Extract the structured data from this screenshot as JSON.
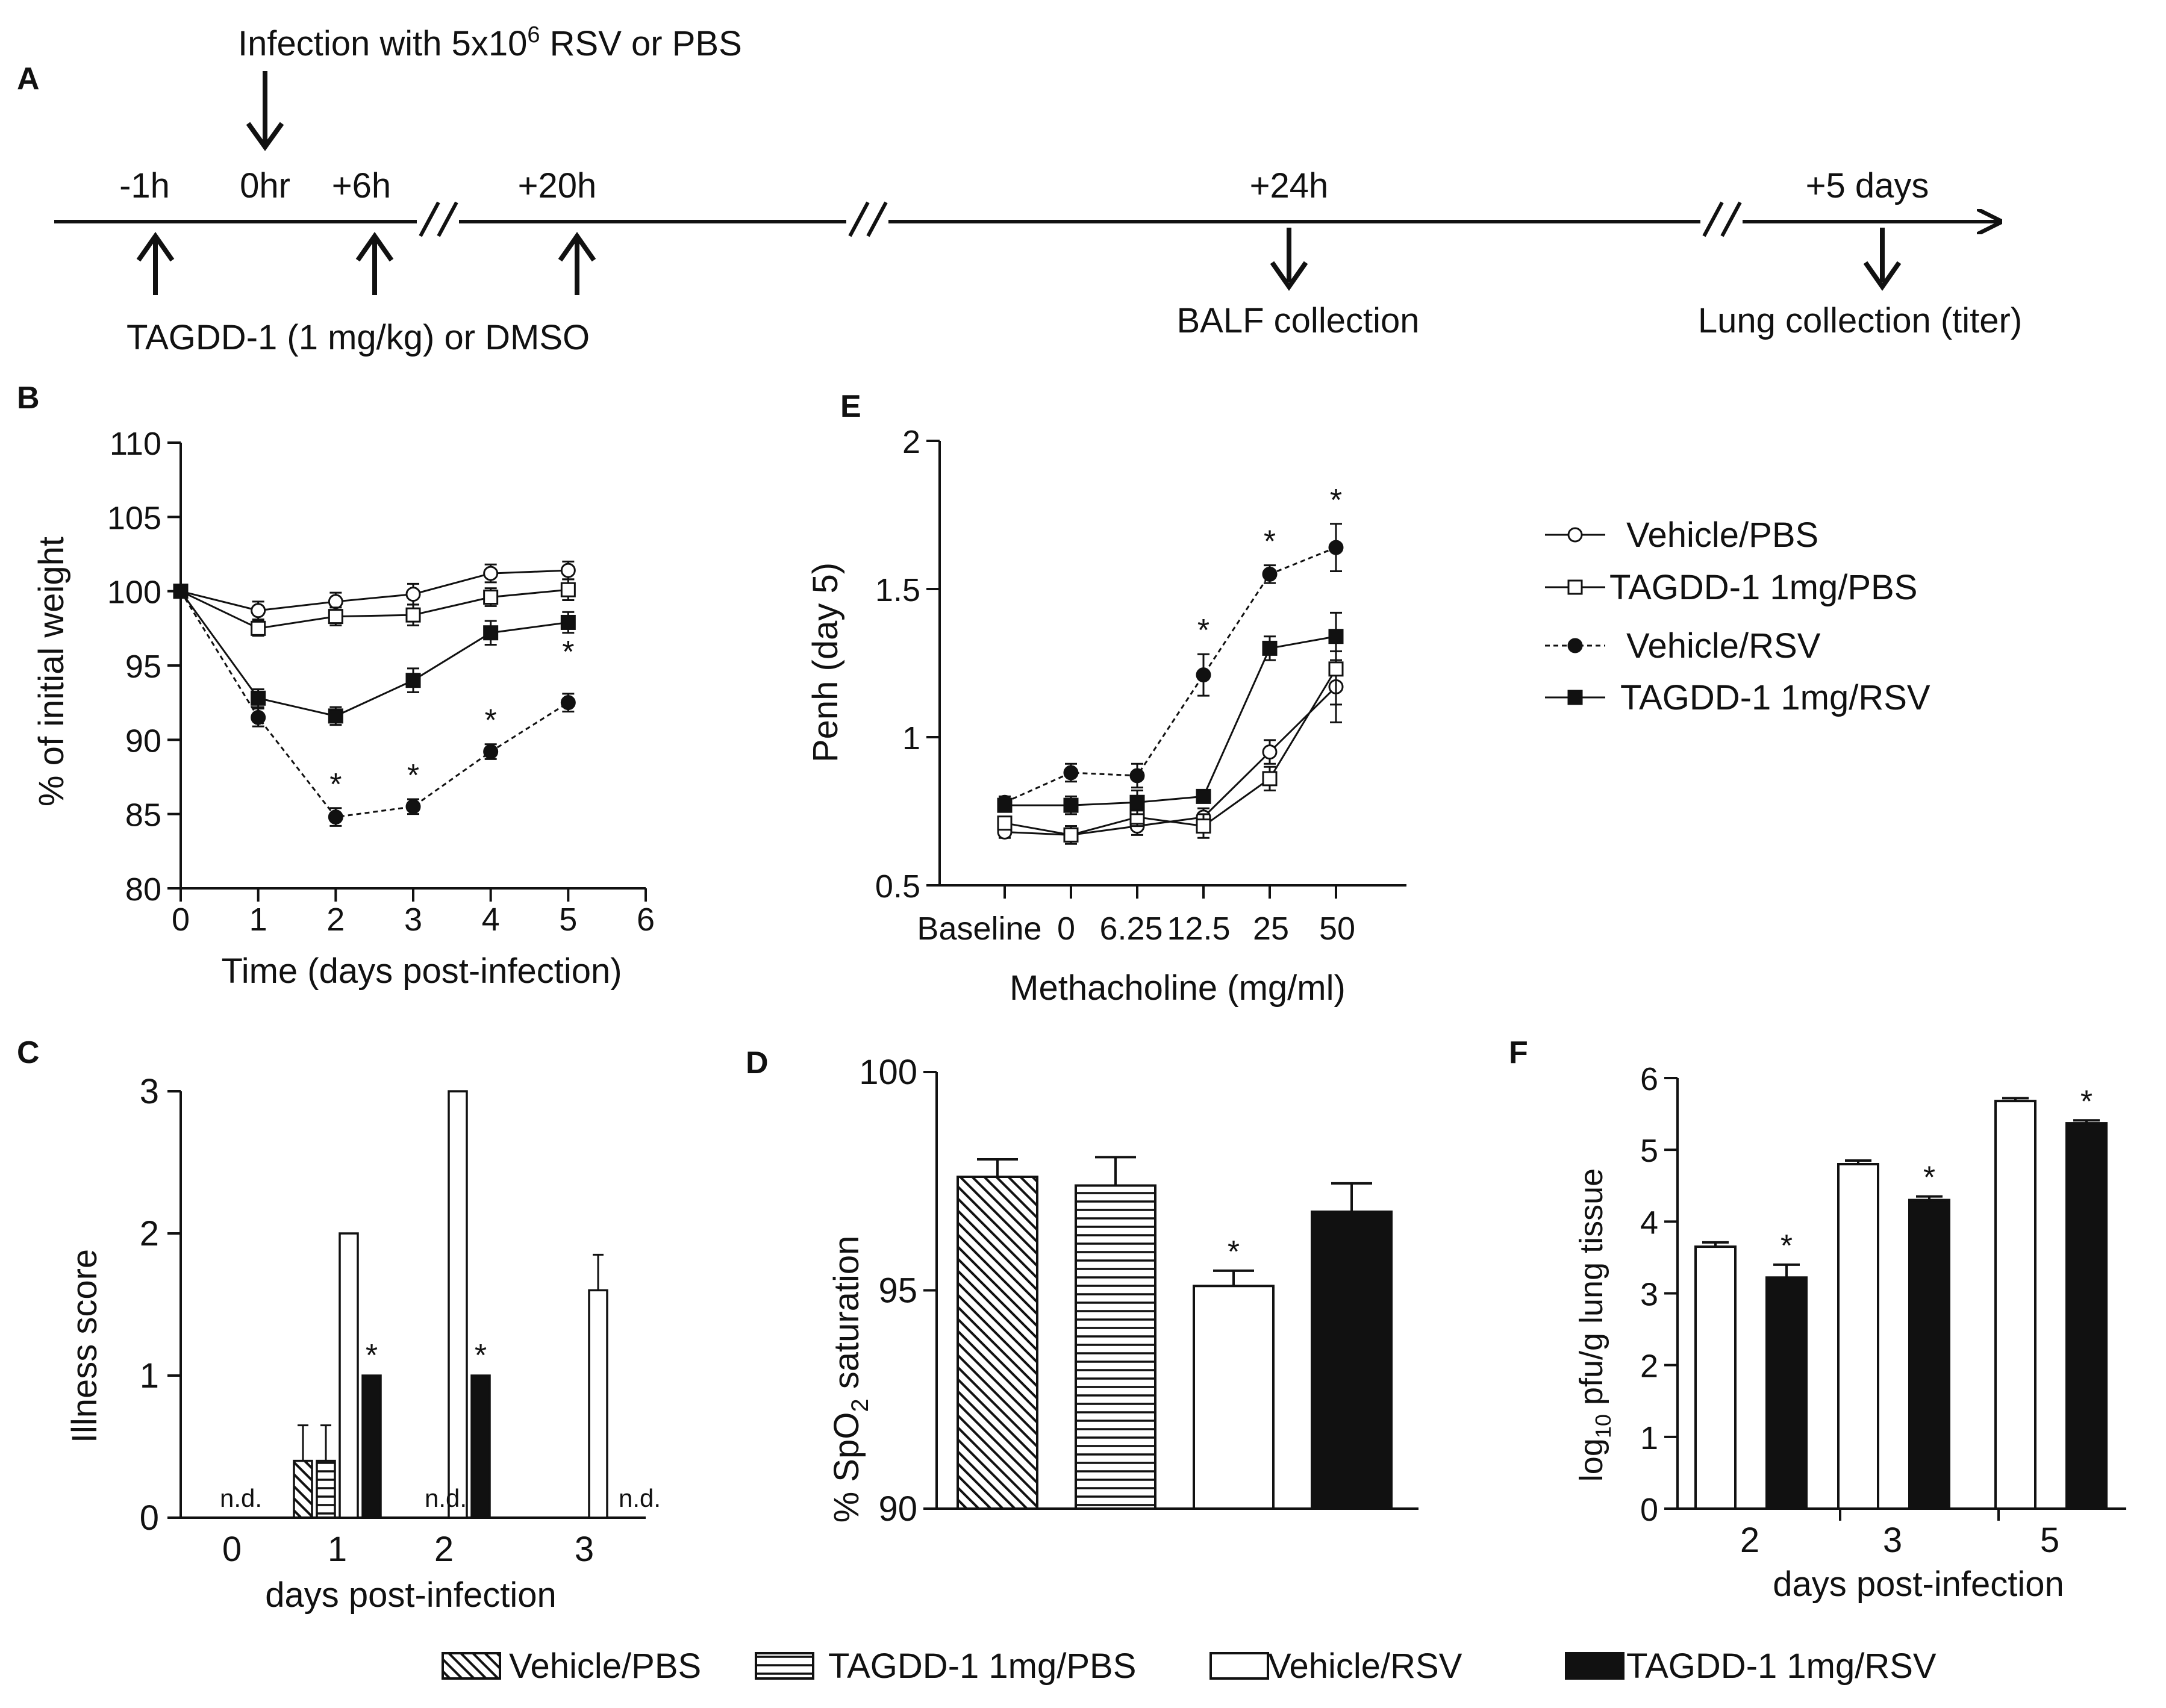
{
  "panel_labels": {
    "A": "A",
    "B": "B",
    "C": "C",
    "D": "D",
    "E": "E",
    "F": "F"
  },
  "timeline": {
    "top_label_prefix": "Infection with 5x10",
    "top_label_exp": "6",
    "top_label_suffix": " RSV or PBS",
    "times": [
      "-1h",
      "0hr",
      "+6h",
      "+20h",
      "+24h",
      "+5 days"
    ],
    "treatment_label": "TAGDD-1 (1 mg/kg) or DMSO",
    "balf_label": "BALF collection",
    "lung_label": "Lung collection (titer)"
  },
  "line_legend": [
    "Vehicle/PBS",
    "TAGDD-1 1mg/PBS",
    "Vehicle/RSV",
    "TAGDD-1 1mg/RSV"
  ],
  "bar_legend": [
    "Vehicle/PBS",
    "TAGDD-1 1mg/PBS",
    "Vehicle/RSV",
    "TAGDD-1 1mg/RSV"
  ],
  "panel_B": {
    "ylabel": "% of initial weight",
    "xlabel": "Time (days post-infection)"
  },
  "panel_C": {
    "ylabel": "Illness score",
    "xlabel": "days post-infection",
    "nd_label": "n.d."
  },
  "panel_D": {
    "ylabel_prefix": "% SpO",
    "ylabel_sub": "2",
    "ylabel_suffix": " saturation"
  },
  "panel_E": {
    "ylabel": "Penh (day 5)",
    "xlabel": "Methacholine (mg/ml)"
  },
  "panel_F": {
    "ylabel_prefix": "log",
    "ylabel_sub": "10",
    "ylabel_suffix": " pfu/g lung tissue",
    "xlabel": "days post-infection"
  },
  "sig_marker": "*",
  "chart_data": [
    {
      "panel": "B",
      "type": "line",
      "xlabel": "Time (days post-infection)",
      "ylabel": "% of initial weight",
      "x": [
        0,
        1,
        2,
        3,
        4,
        5
      ],
      "xlim": [
        0,
        6
      ],
      "ylim": [
        80,
        110
      ],
      "xticks": [
        0,
        1,
        2,
        3,
        4,
        5,
        6
      ],
      "yticks": [
        80,
        85,
        90,
        95,
        100,
        105,
        110
      ],
      "series": [
        {
          "name": "Vehicle/PBS",
          "marker": "circle-open",
          "dashed": false,
          "values": [
            100,
            98.7,
            99.3,
            99.8,
            101.2,
            101.4
          ],
          "errors": [
            0,
            0.6,
            0.6,
            0.7,
            0.6,
            0.6
          ]
        },
        {
          "name": "TAGDD-1 1mg/PBS",
          "marker": "square-open",
          "dashed": false,
          "values": [
            100,
            97.5,
            98.3,
            98.4,
            99.6,
            100.1
          ],
          "errors": [
            0,
            0.5,
            0.6,
            0.7,
            0.6,
            0.7
          ]
        },
        {
          "name": "Vehicle/RSV",
          "marker": "circle-filled",
          "dashed": true,
          "values": [
            100,
            91.5,
            84.8,
            85.5,
            89.2,
            92.5
          ],
          "errors": [
            0,
            0.6,
            0.6,
            0.5,
            0.5,
            0.6
          ]
        },
        {
          "name": "TAGDD-1 1mg/RSV",
          "marker": "square-filled",
          "dashed": false,
          "values": [
            100,
            92.8,
            91.6,
            94.0,
            97.2,
            97.9
          ],
          "errors": [
            0,
            0.6,
            0.6,
            0.8,
            0.8,
            0.7
          ]
        }
      ],
      "significant_x": [
        2,
        3,
        4,
        5
      ]
    },
    {
      "panel": "C",
      "type": "bar",
      "xlabel": "days post-infection",
      "ylabel": "Illness score",
      "categories": [
        "0",
        "1",
        "2",
        "3"
      ],
      "ylim": [
        0,
        3
      ],
      "yticks": [
        0,
        1,
        2,
        3
      ],
      "series": [
        {
          "name": "Vehicle/PBS",
          "values": [
            null,
            0.4,
            null,
            null
          ],
          "errors": [
            null,
            0.25,
            null,
            null
          ]
        },
        {
          "name": "TAGDD-1 1mg/PBS",
          "values": [
            null,
            0.4,
            null,
            null
          ],
          "errors": [
            null,
            0.25,
            null,
            null
          ]
        },
        {
          "name": "Vehicle/RSV",
          "values": [
            null,
            2.0,
            3.0,
            1.6
          ],
          "errors": [
            null,
            0,
            0,
            0.25
          ]
        },
        {
          "name": "TAGDD-1 1mg/RSV",
          "values": [
            null,
            1.0,
            1.0,
            null
          ],
          "errors": [
            null,
            0,
            0,
            null
          ]
        }
      ],
      "not_determined": [
        "0",
        "2",
        "3"
      ],
      "significant": [
        {
          "category": "1",
          "series": "TAGDD-1 1mg/RSV"
        },
        {
          "category": "2",
          "series": "TAGDD-1 1mg/RSV"
        }
      ]
    },
    {
      "panel": "D",
      "type": "bar",
      "ylabel": "% SpO2 saturation",
      "categories": [
        "Vehicle/PBS",
        "TAGDD-1 1mg/PBS",
        "Vehicle/RSV",
        "TAGDD-1 1mg/RSV"
      ],
      "values": [
        97.6,
        97.4,
        95.1,
        96.8
      ],
      "errors": [
        0.4,
        0.65,
        0.35,
        0.65
      ],
      "ylim": [
        90,
        100
      ],
      "yticks": [
        90,
        95,
        100
      ],
      "significant": [
        "Vehicle/RSV"
      ]
    },
    {
      "panel": "E",
      "type": "line",
      "xlabel": "Methacholine (mg/ml)",
      "ylabel": "Penh (day 5)",
      "categories": [
        "Baseline",
        "0",
        "6.25",
        "12.5",
        "25",
        "50"
      ],
      "ylim": [
        0.5,
        2
      ],
      "yticks": [
        0.5,
        1,
        1.5,
        2
      ],
      "series": [
        {
          "name": "Vehicle/PBS",
          "marker": "circle-open",
          "dashed": false,
          "values": [
            0.68,
            0.67,
            0.7,
            0.73,
            0.95,
            1.17
          ],
          "errors": [
            0.02,
            0.03,
            0.03,
            0.03,
            0.04,
            0.12
          ]
        },
        {
          "name": "TAGDD-1 1mg/PBS",
          "marker": "square-open",
          "dashed": false,
          "values": [
            0.71,
            0.67,
            0.73,
            0.7,
            0.86,
            1.23
          ],
          "errors": [
            0.02,
            0.03,
            0.03,
            0.04,
            0.04,
            0.12
          ]
        },
        {
          "name": "Vehicle/RSV",
          "marker": "circle-filled",
          "dashed": true,
          "values": [
            0.78,
            0.88,
            0.87,
            1.21,
            1.55,
            1.64
          ],
          "errors": [
            0.02,
            0.03,
            0.04,
            0.07,
            0.03,
            0.08
          ]
        },
        {
          "name": "TAGDD-1 1mg/RSV",
          "marker": "square-filled",
          "dashed": false,
          "values": [
            0.77,
            0.77,
            0.78,
            0.8,
            1.3,
            1.34
          ],
          "errors": [
            0.02,
            0.03,
            0.04,
            0.02,
            0.04,
            0.08
          ]
        }
      ],
      "significant_categories": [
        "12.5",
        "25",
        "50"
      ]
    },
    {
      "panel": "F",
      "type": "bar",
      "xlabel": "days post-infection",
      "ylabel": "log10 pfu/g lung tissue",
      "categories": [
        "2",
        "3",
        "5"
      ],
      "ylim": [
        0,
        6
      ],
      "yticks": [
        0,
        1,
        2,
        3,
        4,
        5,
        6
      ],
      "series": [
        {
          "name": "Vehicle/RSV",
          "values": [
            3.65,
            4.8,
            5.68
          ],
          "errors": [
            0.06,
            0.05,
            0.04
          ]
        },
        {
          "name": "TAGDD-1 1mg/RSV",
          "values": [
            3.22,
            4.3,
            5.37
          ],
          "errors": [
            0.18,
            0.05,
            0.04
          ]
        }
      ],
      "significant_series": "TAGDD-1 1mg/RSV"
    }
  ]
}
